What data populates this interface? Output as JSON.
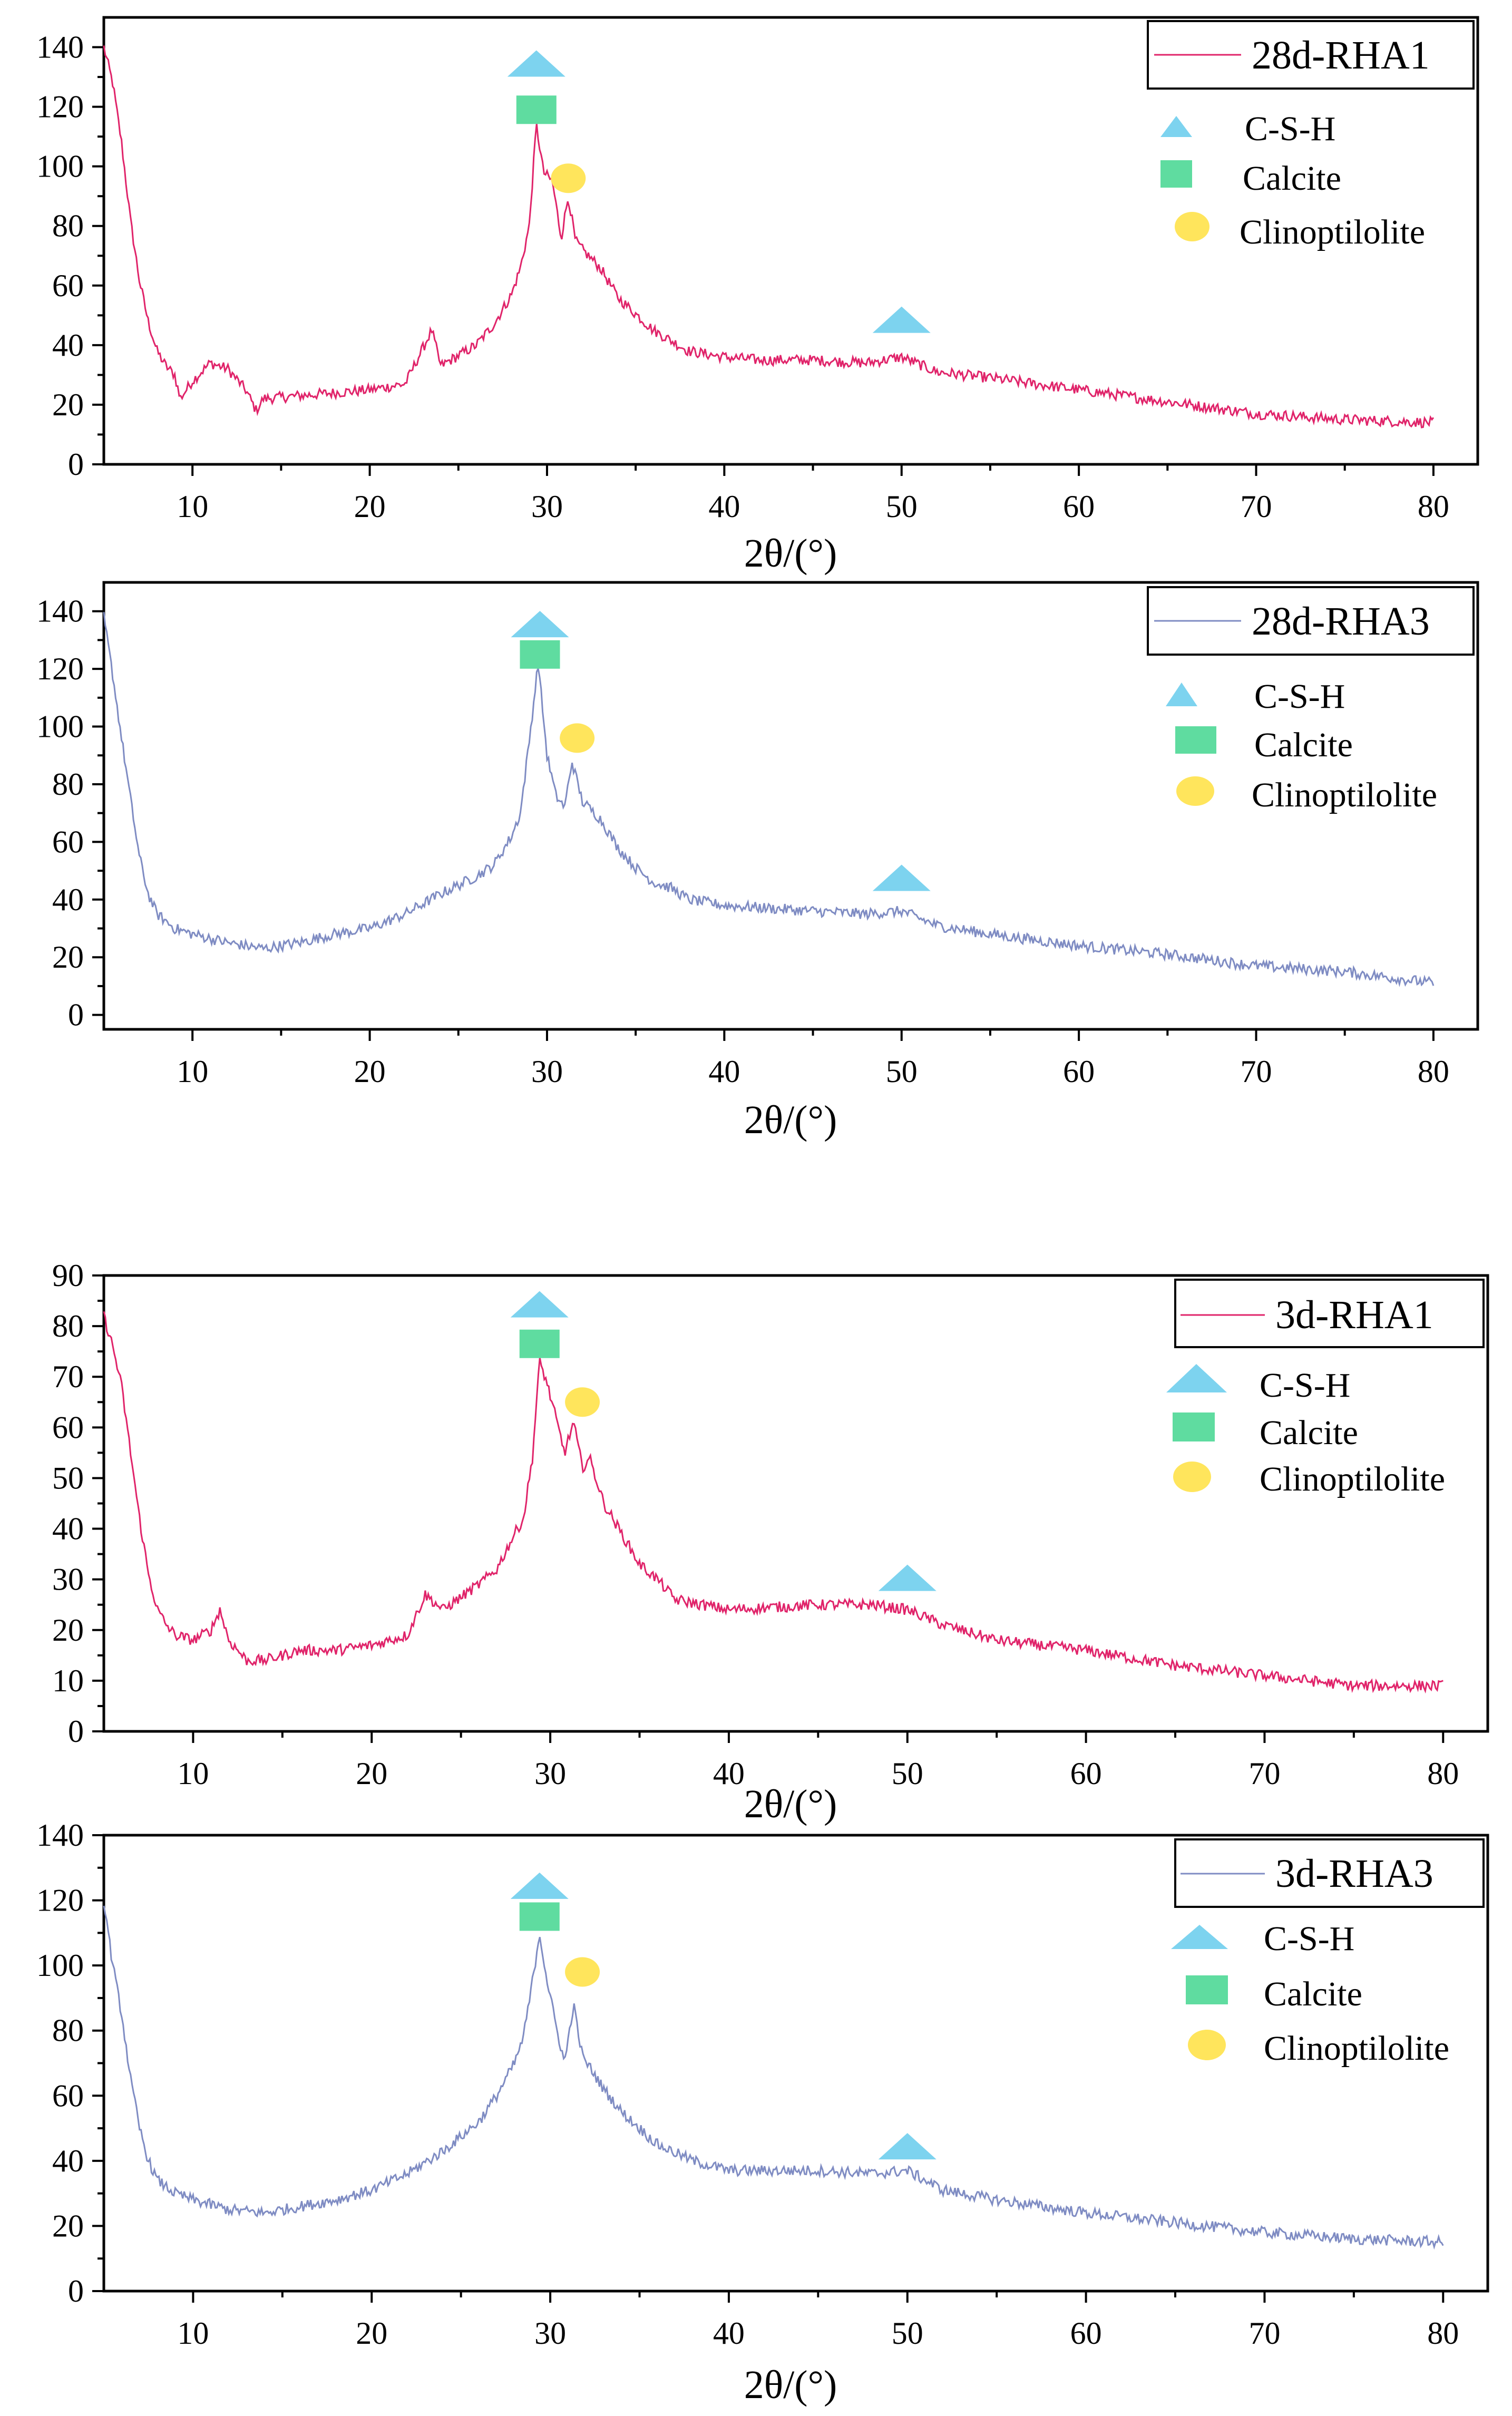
{
  "figure": {
    "marker_legend": [
      "C-S-H",
      "Calcite",
      "Clinoptilolite"
    ]
  },
  "colors": {
    "rha1": "#e0246a",
    "rha3": "#7f8cc3",
    "csh": "#7dd3ef",
    "calcite": "#5fdca0",
    "clinoptilolite": "#ffe55c"
  },
  "chart_data": [
    {
      "type": "line",
      "title": "",
      "legend": "28d-RHA1",
      "xlabel": "2θ/(°)",
      "ylabel": "",
      "xlim": [
        5,
        82.5
      ],
      "ylim": [
        0,
        150
      ],
      "xticks": [
        10,
        20,
        30,
        40,
        50,
        60,
        70,
        80
      ],
      "yticks": [
        0,
        20,
        40,
        60,
        80,
        100,
        120,
        140
      ],
      "markers": [
        {
          "kind": "csh",
          "x": 29.4,
          "y": 134
        },
        {
          "kind": "calcite",
          "x": 29.4,
          "y": 119
        },
        {
          "kind": "clinoptilolite",
          "x": 31.2,
          "y": 96
        },
        {
          "kind": "csh",
          "x": 50.0,
          "y": 48
        }
      ],
      "series": [
        {
          "name": "28d-RHA1",
          "x": [
            5,
            5.5,
            6,
            6.5,
            7,
            7.5,
            8,
            8.5,
            9,
            9.3,
            10,
            11,
            12,
            13,
            13.6,
            14,
            16,
            18,
            20,
            22,
            23.5,
            24,
            26,
            27,
            28,
            28.5,
            29,
            29.4,
            29.8,
            30.3,
            30.8,
            31.2,
            31.6,
            32,
            33,
            34,
            36,
            38,
            40,
            42,
            45,
            48,
            50,
            52,
            55,
            60,
            65,
            70,
            75,
            80
          ],
          "y": [
            140,
            128,
            108,
            82,
            62,
            48,
            38,
            33,
            30,
            22,
            28,
            34,
            32,
            25,
            18,
            22,
            23,
            24,
            25,
            27,
            45,
            33,
            40,
            47,
            57,
            66,
            80,
            114,
            98,
            95,
            76,
            90,
            75,
            72,
            66,
            56,
            45,
            38,
            36,
            35,
            35,
            34,
            36,
            31,
            29,
            25,
            21,
            17,
            15,
            14
          ]
        }
      ]
    },
    {
      "type": "line",
      "title": "",
      "legend": "28d-RHA3",
      "xlabel": "2θ/(°)",
      "ylabel": "",
      "xlim": [
        5,
        82.5
      ],
      "ylim": [
        -5,
        150
      ],
      "xticks": [
        10,
        20,
        30,
        40,
        50,
        60,
        70,
        80
      ],
      "yticks": [
        0,
        20,
        40,
        60,
        80,
        100,
        120,
        140
      ],
      "markers": [
        {
          "kind": "csh",
          "x": 29.6,
          "y": 135
        },
        {
          "kind": "calcite",
          "x": 29.6,
          "y": 125
        },
        {
          "kind": "clinoptilolite",
          "x": 31.7,
          "y": 96
        },
        {
          "kind": "csh",
          "x": 50.0,
          "y": 47
        }
      ],
      "series": [
        {
          "name": "28d-RHA3",
          "x": [
            5,
            5.5,
            6,
            6.5,
            7,
            7.5,
            8,
            9,
            10,
            12,
            14,
            16,
            18,
            20,
            22,
            24,
            26,
            27,
            28,
            28.5,
            29,
            29.5,
            30,
            30.5,
            31,
            31.4,
            32,
            33,
            34,
            35,
            36,
            37,
            38,
            40,
            45,
            48,
            50,
            52,
            55,
            60,
            65,
            70,
            75,
            80
          ],
          "y": [
            138,
            118,
            96,
            75,
            55,
            42,
            35,
            30,
            28,
            25,
            23,
            25,
            28,
            30,
            35,
            42,
            48,
            52,
            62,
            70,
            95,
            122,
            90,
            76,
            72,
            88,
            74,
            68,
            58,
            51,
            46,
            44,
            40,
            38,
            36,
            35,
            36,
            31,
            28,
            24,
            21,
            17,
            15,
            11
          ]
        }
      ]
    },
    {
      "type": "line",
      "title": "",
      "legend": "3d-RHA1",
      "xlabel": "2θ/(°)",
      "ylabel": "",
      "xlim": [
        5,
        82.5
      ],
      "ylim": [
        0,
        90
      ],
      "xticks": [
        10,
        20,
        30,
        40,
        50,
        60,
        70,
        80
      ],
      "yticks": [
        0,
        10,
        20,
        30,
        40,
        50,
        60,
        70,
        80,
        90
      ],
      "markers": [
        {
          "kind": "csh",
          "x": 29.4,
          "y": 84
        },
        {
          "kind": "calcite",
          "x": 29.4,
          "y": 76.5
        },
        {
          "kind": "clinoptilolite",
          "x": 31.8,
          "y": 65
        },
        {
          "kind": "csh",
          "x": 50.0,
          "y": 30
        }
      ],
      "series": [
        {
          "name": "3d-RHA1",
          "x": [
            5,
            5.5,
            6,
            6.5,
            7,
            7.5,
            8,
            8.5,
            9,
            10,
            11,
            11.5,
            12,
            13,
            14,
            16,
            18,
            20,
            22,
            23,
            24,
            26,
            27,
            28,
            28.5,
            29,
            29.4,
            29.8,
            30.3,
            30.8,
            31.3,
            31.8,
            32.2,
            33,
            34,
            35,
            36,
            37,
            40,
            45,
            48,
            50,
            52,
            55,
            60,
            65,
            70,
            75,
            80
          ],
          "y": [
            82,
            76,
            68,
            55,
            42,
            31,
            24,
            21,
            19,
            18,
            20,
            24,
            18,
            14,
            14,
            16,
            16,
            17,
            19,
            27,
            24,
            29,
            32,
            39,
            42,
            54,
            73,
            69,
            62,
            55,
            61,
            52,
            54,
            45,
            39,
            33,
            30,
            26,
            24,
            25,
            25,
            24,
            21,
            18,
            16,
            13,
            11,
            9,
            9
          ]
        }
      ]
    },
    {
      "type": "line",
      "title": "",
      "legend": "3d-RHA3",
      "xlabel": "2θ/(°)",
      "ylabel": "",
      "xlim": [
        5,
        82.5
      ],
      "ylim": [
        0,
        140
      ],
      "xticks": [
        10,
        20,
        30,
        40,
        50,
        60,
        70,
        80
      ],
      "yticks": [
        0,
        20,
        40,
        60,
        80,
        100,
        120,
        140
      ],
      "markers": [
        {
          "kind": "csh",
          "x": 29.4,
          "y": 124
        },
        {
          "kind": "calcite",
          "x": 29.4,
          "y": 115
        },
        {
          "kind": "clinoptilolite",
          "x": 31.8,
          "y": 98
        },
        {
          "kind": "csh",
          "x": 50.0,
          "y": 44
        }
      ],
      "series": [
        {
          "name": "3d-RHA3",
          "x": [
            5,
            5.5,
            6,
            6.5,
            7,
            7.5,
            8,
            9,
            10,
            12,
            14,
            16,
            18,
            20,
            22,
            24,
            26,
            27,
            28,
            28.5,
            29,
            29.4,
            29.8,
            30.3,
            30.8,
            31.3,
            31.8,
            32.3,
            33,
            34,
            35,
            36,
            38,
            40,
            45,
            48,
            50,
            52,
            55,
            60,
            65,
            70,
            75,
            80
          ],
          "y": [
            120,
            100,
            85,
            65,
            50,
            40,
            34,
            30,
            28,
            25,
            24,
            26,
            28,
            31,
            36,
            43,
            52,
            60,
            70,
            78,
            95,
            110,
            96,
            82,
            70,
            88,
            72,
            68,
            62,
            55,
            50,
            45,
            40,
            37,
            37,
            36,
            37,
            31,
            28,
            24,
            21,
            18,
            16,
            15
          ]
        }
      ]
    }
  ]
}
